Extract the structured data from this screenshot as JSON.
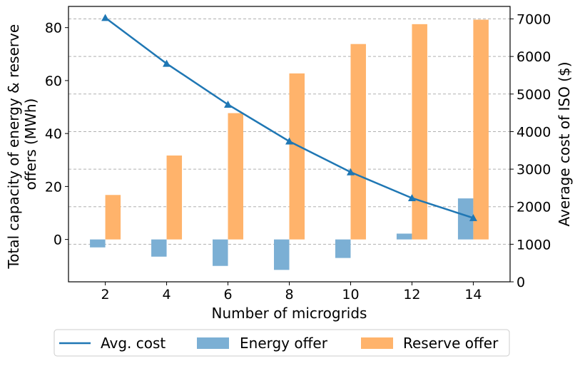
{
  "chart_data": {
    "type": "bar",
    "x": [
      2,
      4,
      6,
      8,
      10,
      12,
      14
    ],
    "xlabel": "Number of microgrids",
    "ylabel_left_lines": [
      "Total capacity of energy & reserve",
      "offers (MWh)"
    ],
    "ylabel_right": "Average cost of ISO ($)",
    "ylim_left": [
      -16,
      88
    ],
    "ylim_right": [
      0,
      7333
    ],
    "yticks_left": [
      0,
      20,
      40,
      60,
      80
    ],
    "yticks_right": [
      0,
      1000,
      2000,
      3000,
      4000,
      5000,
      6000,
      7000
    ],
    "grid": "horizontal dashed",
    "legend_position": "bottom",
    "colors": {
      "energy": "#7BAFD4",
      "reserve": "#FFB36B",
      "cost": "#1F77B4",
      "grid": "#b0b0b0"
    },
    "series": [
      {
        "name": "Avg. cost",
        "kind": "line",
        "axis": "right",
        "marker": "triangle",
        "values": [
          7030,
          5810,
          4720,
          3740,
          2920,
          2230,
          1700
        ]
      },
      {
        "name": "Energy offer",
        "kind": "bar",
        "axis": "left",
        "values": [
          -3.0,
          -6.5,
          -10.0,
          -11.5,
          -7.0,
          2.2,
          15.5
        ]
      },
      {
        "name": "Reserve offer",
        "kind": "bar",
        "axis": "left",
        "values": [
          16.8,
          31.7,
          47.7,
          62.7,
          73.8,
          81.3,
          83.0
        ]
      }
    ]
  }
}
